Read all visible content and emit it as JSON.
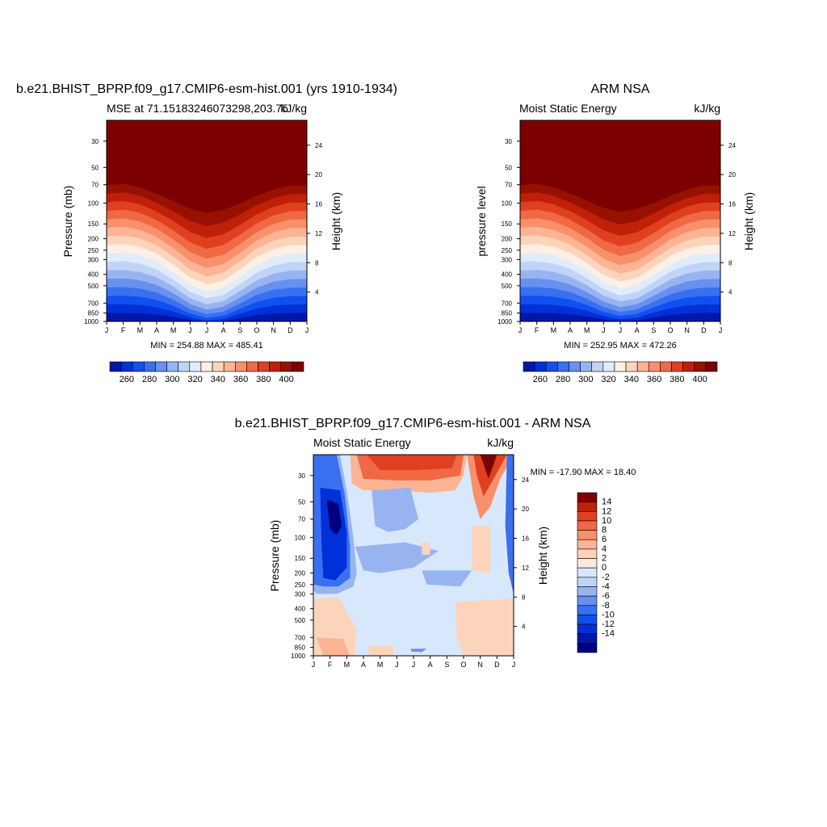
{
  "colors": {
    "mse_scale": [
      "#00007f",
      "#0018a8",
      "#0030d8",
      "#1050f0",
      "#3870f0",
      "#6890f0",
      "#98b4f0",
      "#c0d4f8",
      "#e0ecfc",
      "#fcefe4",
      "#fcd4bc",
      "#fcb494",
      "#f8906c",
      "#f06844",
      "#e04020",
      "#c02008",
      "#981000",
      "#7c0000"
    ],
    "diff_scale": [
      "#00007f",
      "#0018a8",
      "#0030d8",
      "#1050f0",
      "#3870f0",
      "#6890f0",
      "#98b4f0",
      "#c0d4f8",
      "#d8e8fc",
      "#fce8dc",
      "#fcd4bc",
      "#fcb494",
      "#f8906c",
      "#f06844",
      "#e04020",
      "#c02008",
      "#7c0000"
    ]
  },
  "months": [
    "J",
    "F",
    "M",
    "A",
    "M",
    "J",
    "J",
    "A",
    "S",
    "O",
    "N",
    "D",
    "J"
  ],
  "chart_data": [
    {
      "type": "heatmap",
      "title": "b.e21.BHIST_BPRP.f09_g17.CMIP6-esm-hist.001 (yrs 1910-1934)",
      "subtitle_left": "MSE at 71.15183246073298,203.75",
      "units": "kJ/kg",
      "ylabel": "Pressure (mb)",
      "ylabel_right": "Height (km)",
      "y_ticks": [
        30,
        50,
        70,
        100,
        150,
        200,
        250,
        300,
        400,
        500,
        700,
        850,
        1000
      ],
      "y_right_ticks": [
        24,
        20,
        16,
        12,
        8,
        4
      ],
      "stats": "MIN = 254.88 MAX = 485.41",
      "colorbar_labels": [
        "260",
        "280",
        "300",
        "320",
        "340",
        "360",
        "380",
        "400"
      ],
      "contour_levels": [
        340,
        320,
        300,
        280
      ]
    },
    {
      "type": "heatmap",
      "title": "ARM NSA",
      "subtitle_left": "Moist Static Energy",
      "units": "kJ/kg",
      "ylabel": "pressure level",
      "ylabel_right": "Height (km)",
      "y_ticks": [
        30,
        50,
        70,
        100,
        150,
        200,
        250,
        300,
        400,
        500,
        700,
        850,
        1000
      ],
      "y_right_ticks": [
        24,
        20,
        16,
        12,
        8,
        4
      ],
      "stats": "MIN = 252.95 MAX = 472.26",
      "colorbar_labels": [
        "260",
        "280",
        "300",
        "320",
        "340",
        "360",
        "380",
        "400"
      ],
      "contour_levels": [
        340,
        320,
        300,
        280
      ]
    },
    {
      "type": "heatmap",
      "title": "b.e21.BHIST_BPRP.f09_g17.CMIP6-esm-hist.001 - ARM NSA",
      "subtitle_left": "Moist Static Energy",
      "units": "kJ/kg",
      "ylabel": "Pressure (mb)",
      "ylabel_right": "Height (km)",
      "y_ticks": [
        30,
        50,
        70,
        100,
        150,
        200,
        250,
        300,
        400,
        500,
        700,
        850,
        1000
      ],
      "y_right_ticks": [
        24,
        20,
        16,
        12,
        8,
        4
      ],
      "stats": "MIN = -17.90 MAX =  18.40",
      "colorbar_labels": [
        "14",
        "12",
        "10",
        "8",
        "6",
        "4",
        "2",
        "0",
        "-2",
        "-4",
        "-6",
        "-8",
        "-10",
        "-12",
        "-14"
      ]
    }
  ]
}
